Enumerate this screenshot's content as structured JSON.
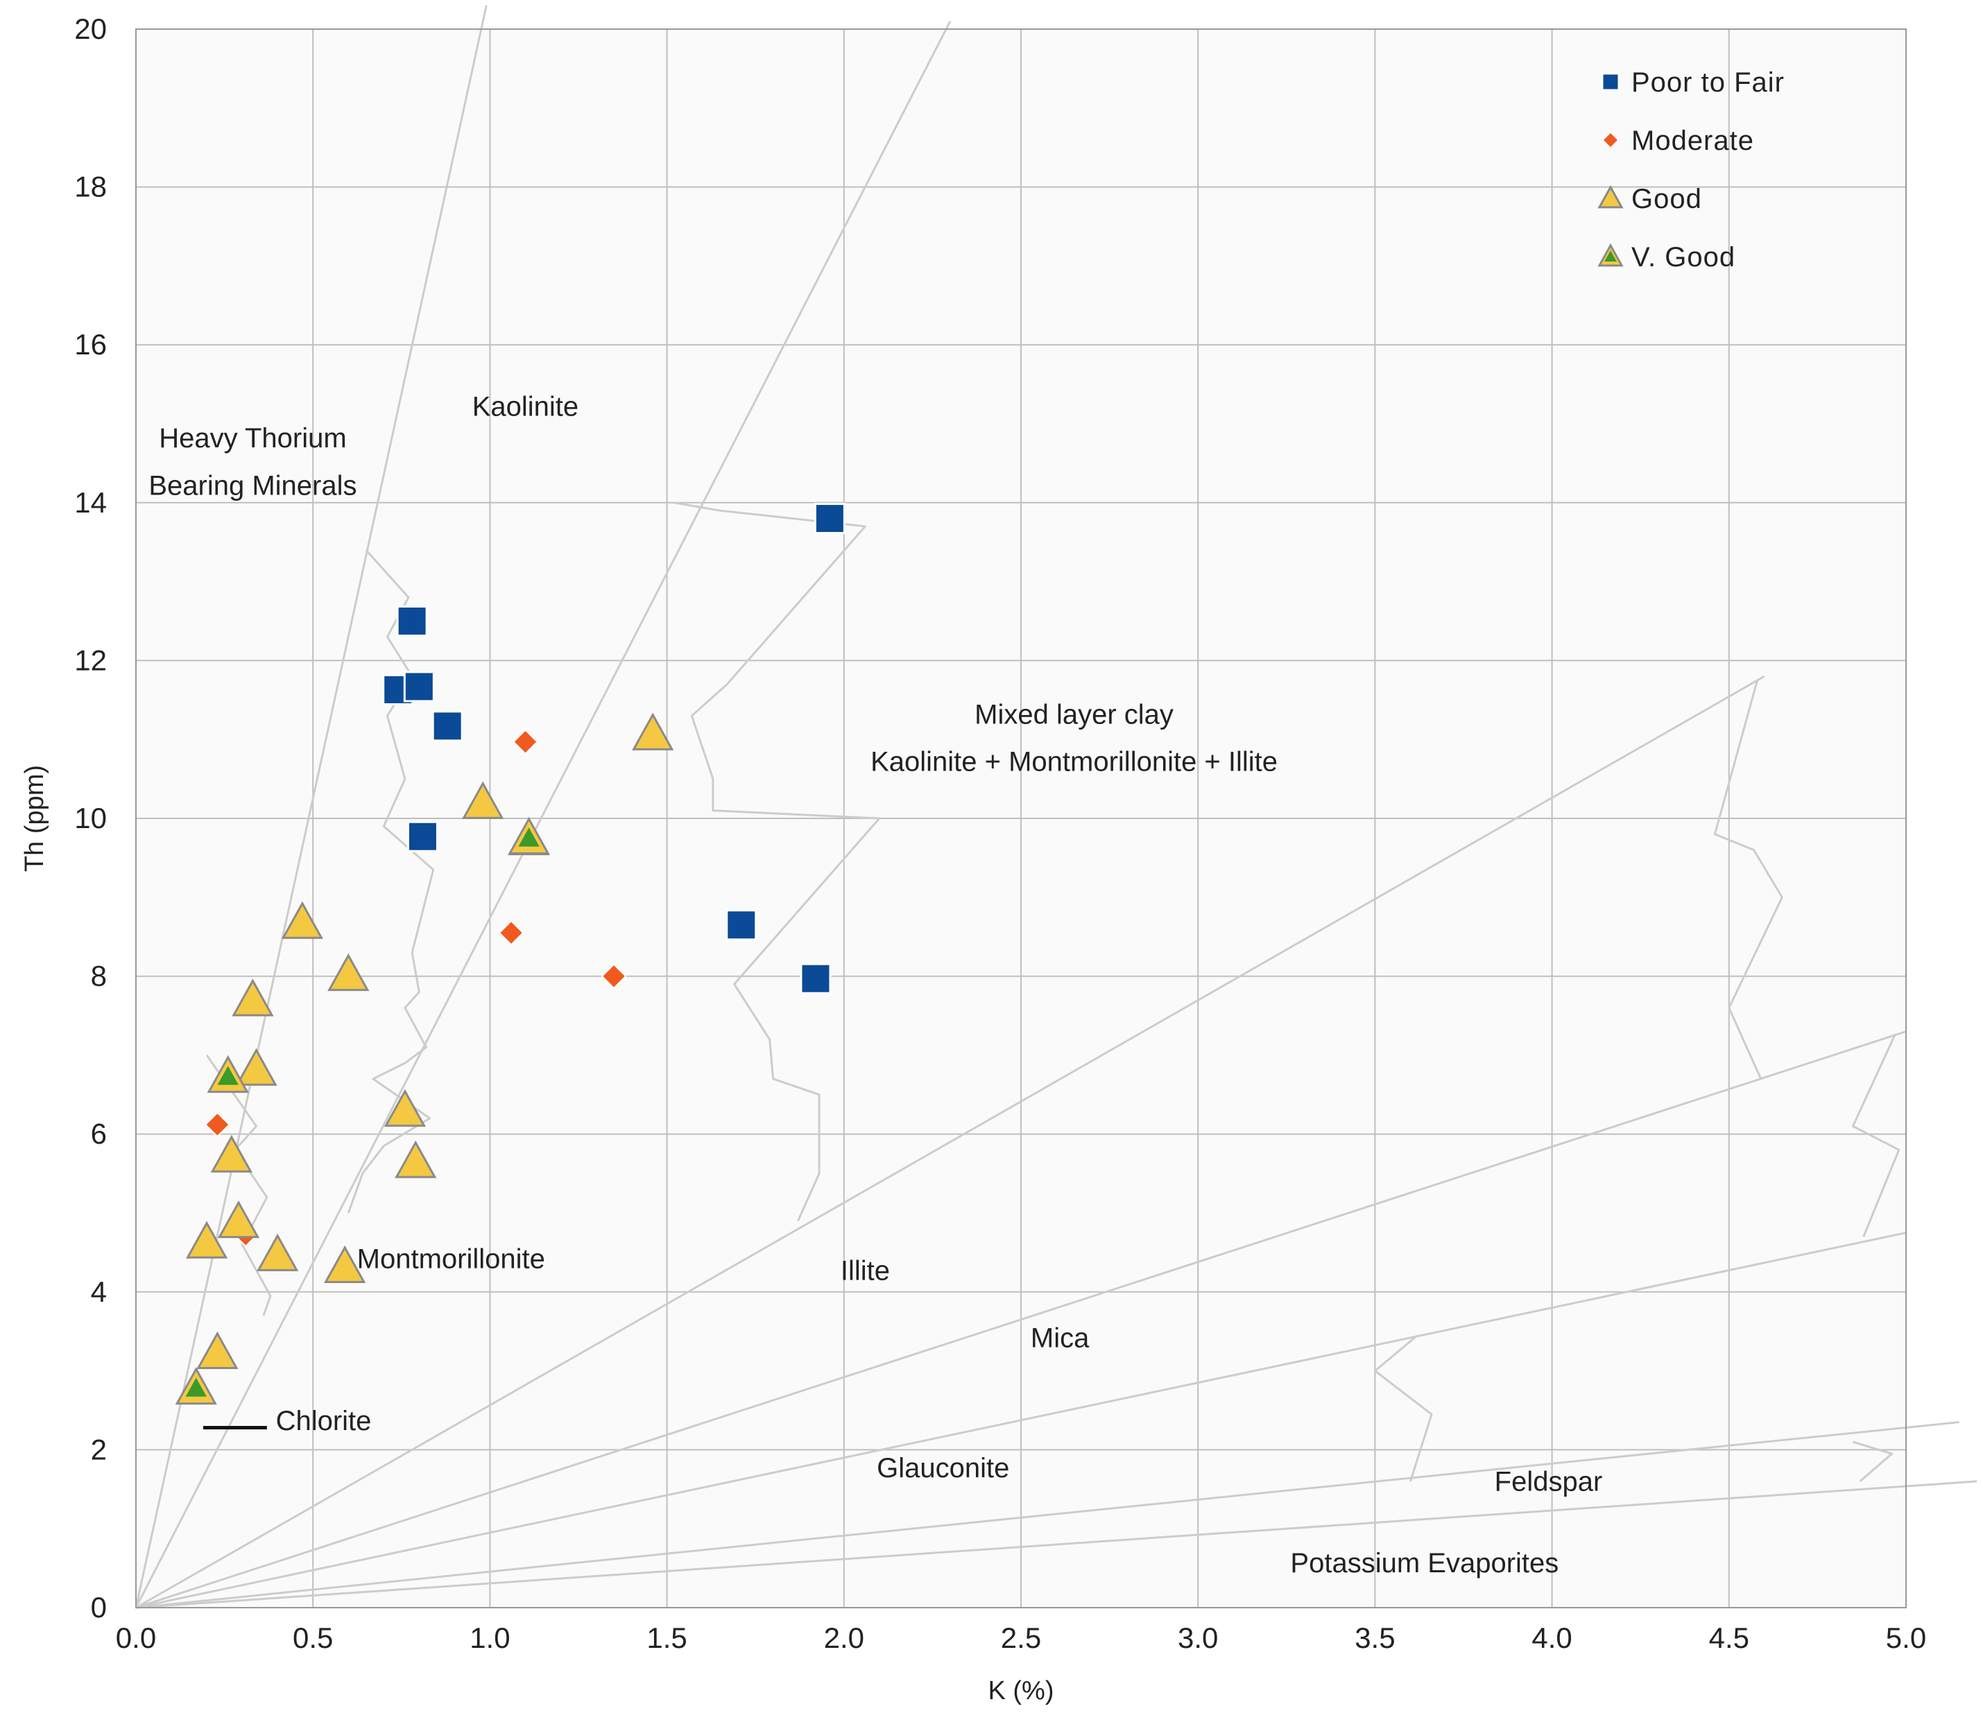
{
  "chart_data": {
    "type": "scatter",
    "title": "",
    "xlabel": "K (%)",
    "ylabel": "Th (ppm)",
    "xlim": [
      0,
      5
    ],
    "ylim": [
      0,
      20
    ],
    "x_ticks": [
      "0.0",
      "0.5",
      "1.0",
      "1.5",
      "2.0",
      "2.5",
      "3.0",
      "3.5",
      "4.0",
      "4.5",
      "5.0"
    ],
    "y_ticks": [
      "0",
      "2",
      "4",
      "6",
      "8",
      "10",
      "12",
      "14",
      "16",
      "18",
      "20"
    ],
    "grid": true,
    "legend_position": "top-right",
    "colors": {
      "poor": "#0a4a96",
      "moderate": "#f05a1e",
      "good": "#f5c842",
      "vgood_fill": "#f5c842",
      "vgood_inner": "#3a9a2a",
      "guides": "#cccccc",
      "grid": "#bfbfbf",
      "plot_bg": "#fafafa"
    },
    "series": [
      {
        "name": "Poor to Fair",
        "marker": "square",
        "points": [
          [
            0.78,
            12.5
          ],
          [
            0.74,
            11.63
          ],
          [
            0.8,
            11.67
          ],
          [
            0.88,
            11.17
          ],
          [
            0.81,
            9.77
          ],
          [
            1.96,
            13.8
          ],
          [
            1.71,
            8.65
          ],
          [
            1.92,
            7.97
          ]
        ]
      },
      {
        "name": "Moderate",
        "marker": "diamond",
        "points": [
          [
            0.23,
            6.12
          ],
          [
            0.31,
            4.73
          ],
          [
            1.1,
            10.97
          ],
          [
            1.06,
            8.55
          ],
          [
            1.35,
            8.0
          ]
        ]
      },
      {
        "name": "Good",
        "marker": "triangle",
        "points": [
          [
            0.2,
            4.63
          ],
          [
            0.23,
            3.23
          ],
          [
            0.27,
            5.72
          ],
          [
            0.29,
            4.89
          ],
          [
            0.33,
            7.7
          ],
          [
            0.34,
            6.82
          ],
          [
            0.4,
            4.47
          ],
          [
            0.47,
            8.68
          ],
          [
            0.59,
            4.32
          ],
          [
            0.6,
            8.02
          ],
          [
            0.76,
            6.3
          ],
          [
            0.79,
            5.65
          ],
          [
            0.98,
            10.2
          ],
          [
            1.46,
            11.07
          ],
          [
            1.11,
            9.74
          ]
        ]
      },
      {
        "name": "V. Good",
        "marker": "triangle-inset",
        "points": [
          [
            0.17,
            2.78
          ],
          [
            0.26,
            6.73
          ],
          [
            1.11,
            9.75
          ]
        ]
      }
    ],
    "region_labels": [
      {
        "text": "Kaolinite",
        "k": 1.1,
        "th": 15.1
      },
      {
        "text": "Heavy Thorium",
        "k": 0.33,
        "th": 14.7
      },
      {
        "text": "Bearing Minerals",
        "k": 0.33,
        "th": 14.1
      },
      {
        "text": "Mixed layer clay",
        "k": 2.65,
        "th": 11.2
      },
      {
        "text": "Kaolinite + Montmorillonite + Illite",
        "k": 2.65,
        "th": 10.6
      },
      {
        "text": "Montmorillonite",
        "k": 0.89,
        "th": 4.3
      },
      {
        "text": "Illite",
        "k": 2.06,
        "th": 4.15
      },
      {
        "text": "Mica",
        "k": 2.61,
        "th": 3.3
      },
      {
        "text": "Chlorite",
        "k": 0.53,
        "th": 2.25
      },
      {
        "text": "Glauconite",
        "k": 2.28,
        "th": 1.65
      },
      {
        "text": "Feldspar",
        "k": 3.99,
        "th": 1.48
      },
      {
        "text": "Potassium Evaporites",
        "k": 3.64,
        "th": 0.45
      }
    ],
    "chlorite_marker": [
      [
        0.19,
        2.28
      ],
      [
        0.37,
        2.28
      ]
    ],
    "trend_lines": [
      [
        [
          0,
          0
        ],
        [
          0.99,
          20.3
        ]
      ],
      [
        [
          0,
          0
        ],
        [
          2.3,
          20.1
        ]
      ],
      [
        [
          0,
          0
        ],
        [
          4.6,
          11.8
        ]
      ],
      [
        [
          0,
          0
        ],
        [
          5.0,
          7.3
        ]
      ],
      [
        [
          0,
          0
        ],
        [
          5.0,
          4.75
        ]
      ],
      [
        [
          0,
          0
        ],
        [
          5.15,
          2.35
        ]
      ],
      [
        [
          0,
          0
        ],
        [
          5.2,
          1.6
        ]
      ]
    ],
    "boundary_paths": [
      [
        [
          0.65,
          13.4
        ],
        [
          0.77,
          12.8
        ],
        [
          0.71,
          12.3
        ],
        [
          0.78,
          11.8
        ],
        [
          0.71,
          11.3
        ],
        [
          0.76,
          10.5
        ],
        [
          0.7,
          9.9
        ],
        [
          0.84,
          9.35
        ],
        [
          0.78,
          8.3
        ],
        [
          0.8,
          7.8
        ],
        [
          0.76,
          7.6
        ],
        [
          0.82,
          7.1
        ],
        [
          0.76,
          6.9
        ],
        [
          0.67,
          6.7
        ],
        [
          0.83,
          6.2
        ],
        [
          0.7,
          5.85
        ],
        [
          0.64,
          5.5
        ],
        [
          0.6,
          5.0
        ]
      ],
      [
        [
          0.2,
          7.0
        ],
        [
          0.34,
          6.1
        ],
        [
          0.28,
          5.8
        ],
        [
          0.37,
          5.2
        ],
        [
          0.3,
          4.6
        ],
        [
          0.38,
          3.95
        ],
        [
          0.36,
          3.7
        ]
      ],
      [
        [
          1.52,
          14.0
        ],
        [
          1.65,
          13.9
        ],
        [
          2.06,
          13.7
        ],
        [
          1.67,
          11.7
        ],
        [
          1.57,
          11.3
        ],
        [
          1.63,
          10.5
        ],
        [
          1.63,
          10.1
        ],
        [
          2.1,
          10.0
        ],
        [
          1.69,
          7.9
        ],
        [
          1.79,
          7.2
        ],
        [
          1.8,
          6.7
        ],
        [
          1.93,
          6.5
        ],
        [
          1.93,
          5.5
        ],
        [
          1.87,
          4.9
        ]
      ],
      [
        [
          4.58,
          11.75
        ],
        [
          4.46,
          9.8
        ],
        [
          4.57,
          9.6
        ],
        [
          4.65,
          9.0
        ],
        [
          4.5,
          7.6
        ],
        [
          4.59,
          6.7
        ]
      ],
      [
        [
          4.97,
          7.27
        ],
        [
          4.85,
          6.1
        ],
        [
          4.98,
          5.8
        ],
        [
          4.88,
          4.7
        ]
      ],
      [
        [
          3.62,
          3.45
        ],
        [
          3.5,
          3.0
        ],
        [
          3.66,
          2.45
        ],
        [
          3.6,
          1.6
        ]
      ],
      [
        [
          4.85,
          2.1
        ],
        [
          4.96,
          1.95
        ],
        [
          4.87,
          1.6
        ]
      ]
    ]
  }
}
